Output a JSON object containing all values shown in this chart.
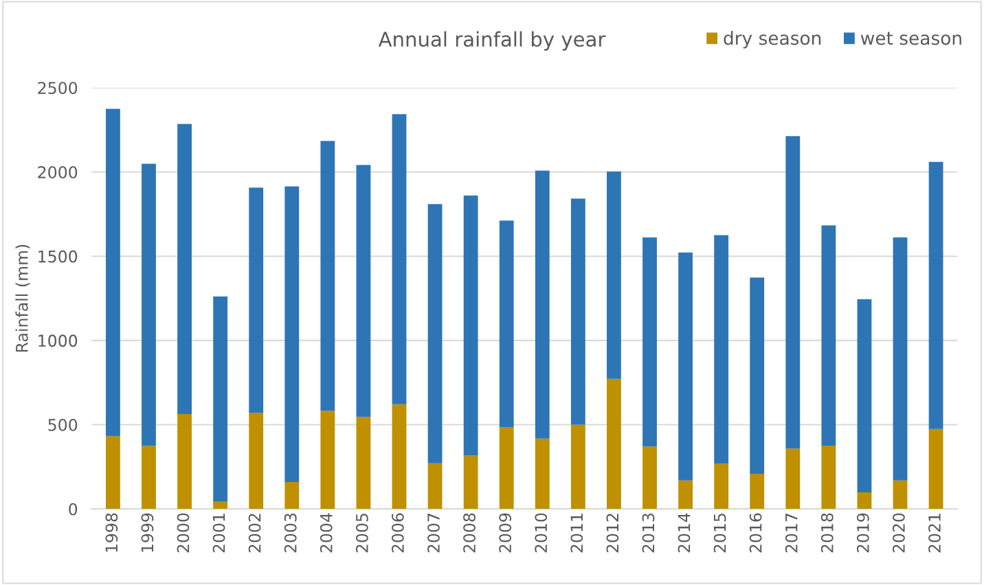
{
  "chart_data": {
    "type": "bar",
    "title": "Annual rainfall by year",
    "ylabel": "Rainfall (mm)",
    "categories": [
      "1998",
      "1999",
      "2000",
      "2001",
      "2002",
      "2003",
      "2004",
      "2005",
      "2006",
      "2007",
      "2008",
      "2009",
      "2010",
      "2011",
      "2012",
      "2013",
      "2014",
      "2015",
      "2016",
      "2017",
      "2018",
      "2019",
      "2020",
      "2021"
    ],
    "series": [
      {
        "name": "dry season",
        "color": "#bf9000",
        "values": [
          432,
          374,
          563,
          43,
          570,
          160,
          583,
          546,
          621,
          271,
          317,
          484,
          418,
          500,
          772,
          371,
          169,
          268,
          209,
          359,
          376,
          99,
          169,
          475
        ]
      },
      {
        "name": "wet season",
        "color": "#2e75b6",
        "values": [
          1943,
          1675,
          1722,
          1218,
          1337,
          1754,
          1601,
          1496,
          1722,
          1538,
          1543,
          1228,
          1590,
          1342,
          1231,
          1241,
          1353,
          1357,
          1164,
          1854,
          1307,
          1146,
          1443,
          1585
        ]
      }
    ],
    "stacked": true,
    "ylim": [
      0,
      2500
    ],
    "yticks": [
      0,
      500,
      1000,
      1500,
      2000,
      2500
    ],
    "grid": "y",
    "legend": "top right"
  }
}
